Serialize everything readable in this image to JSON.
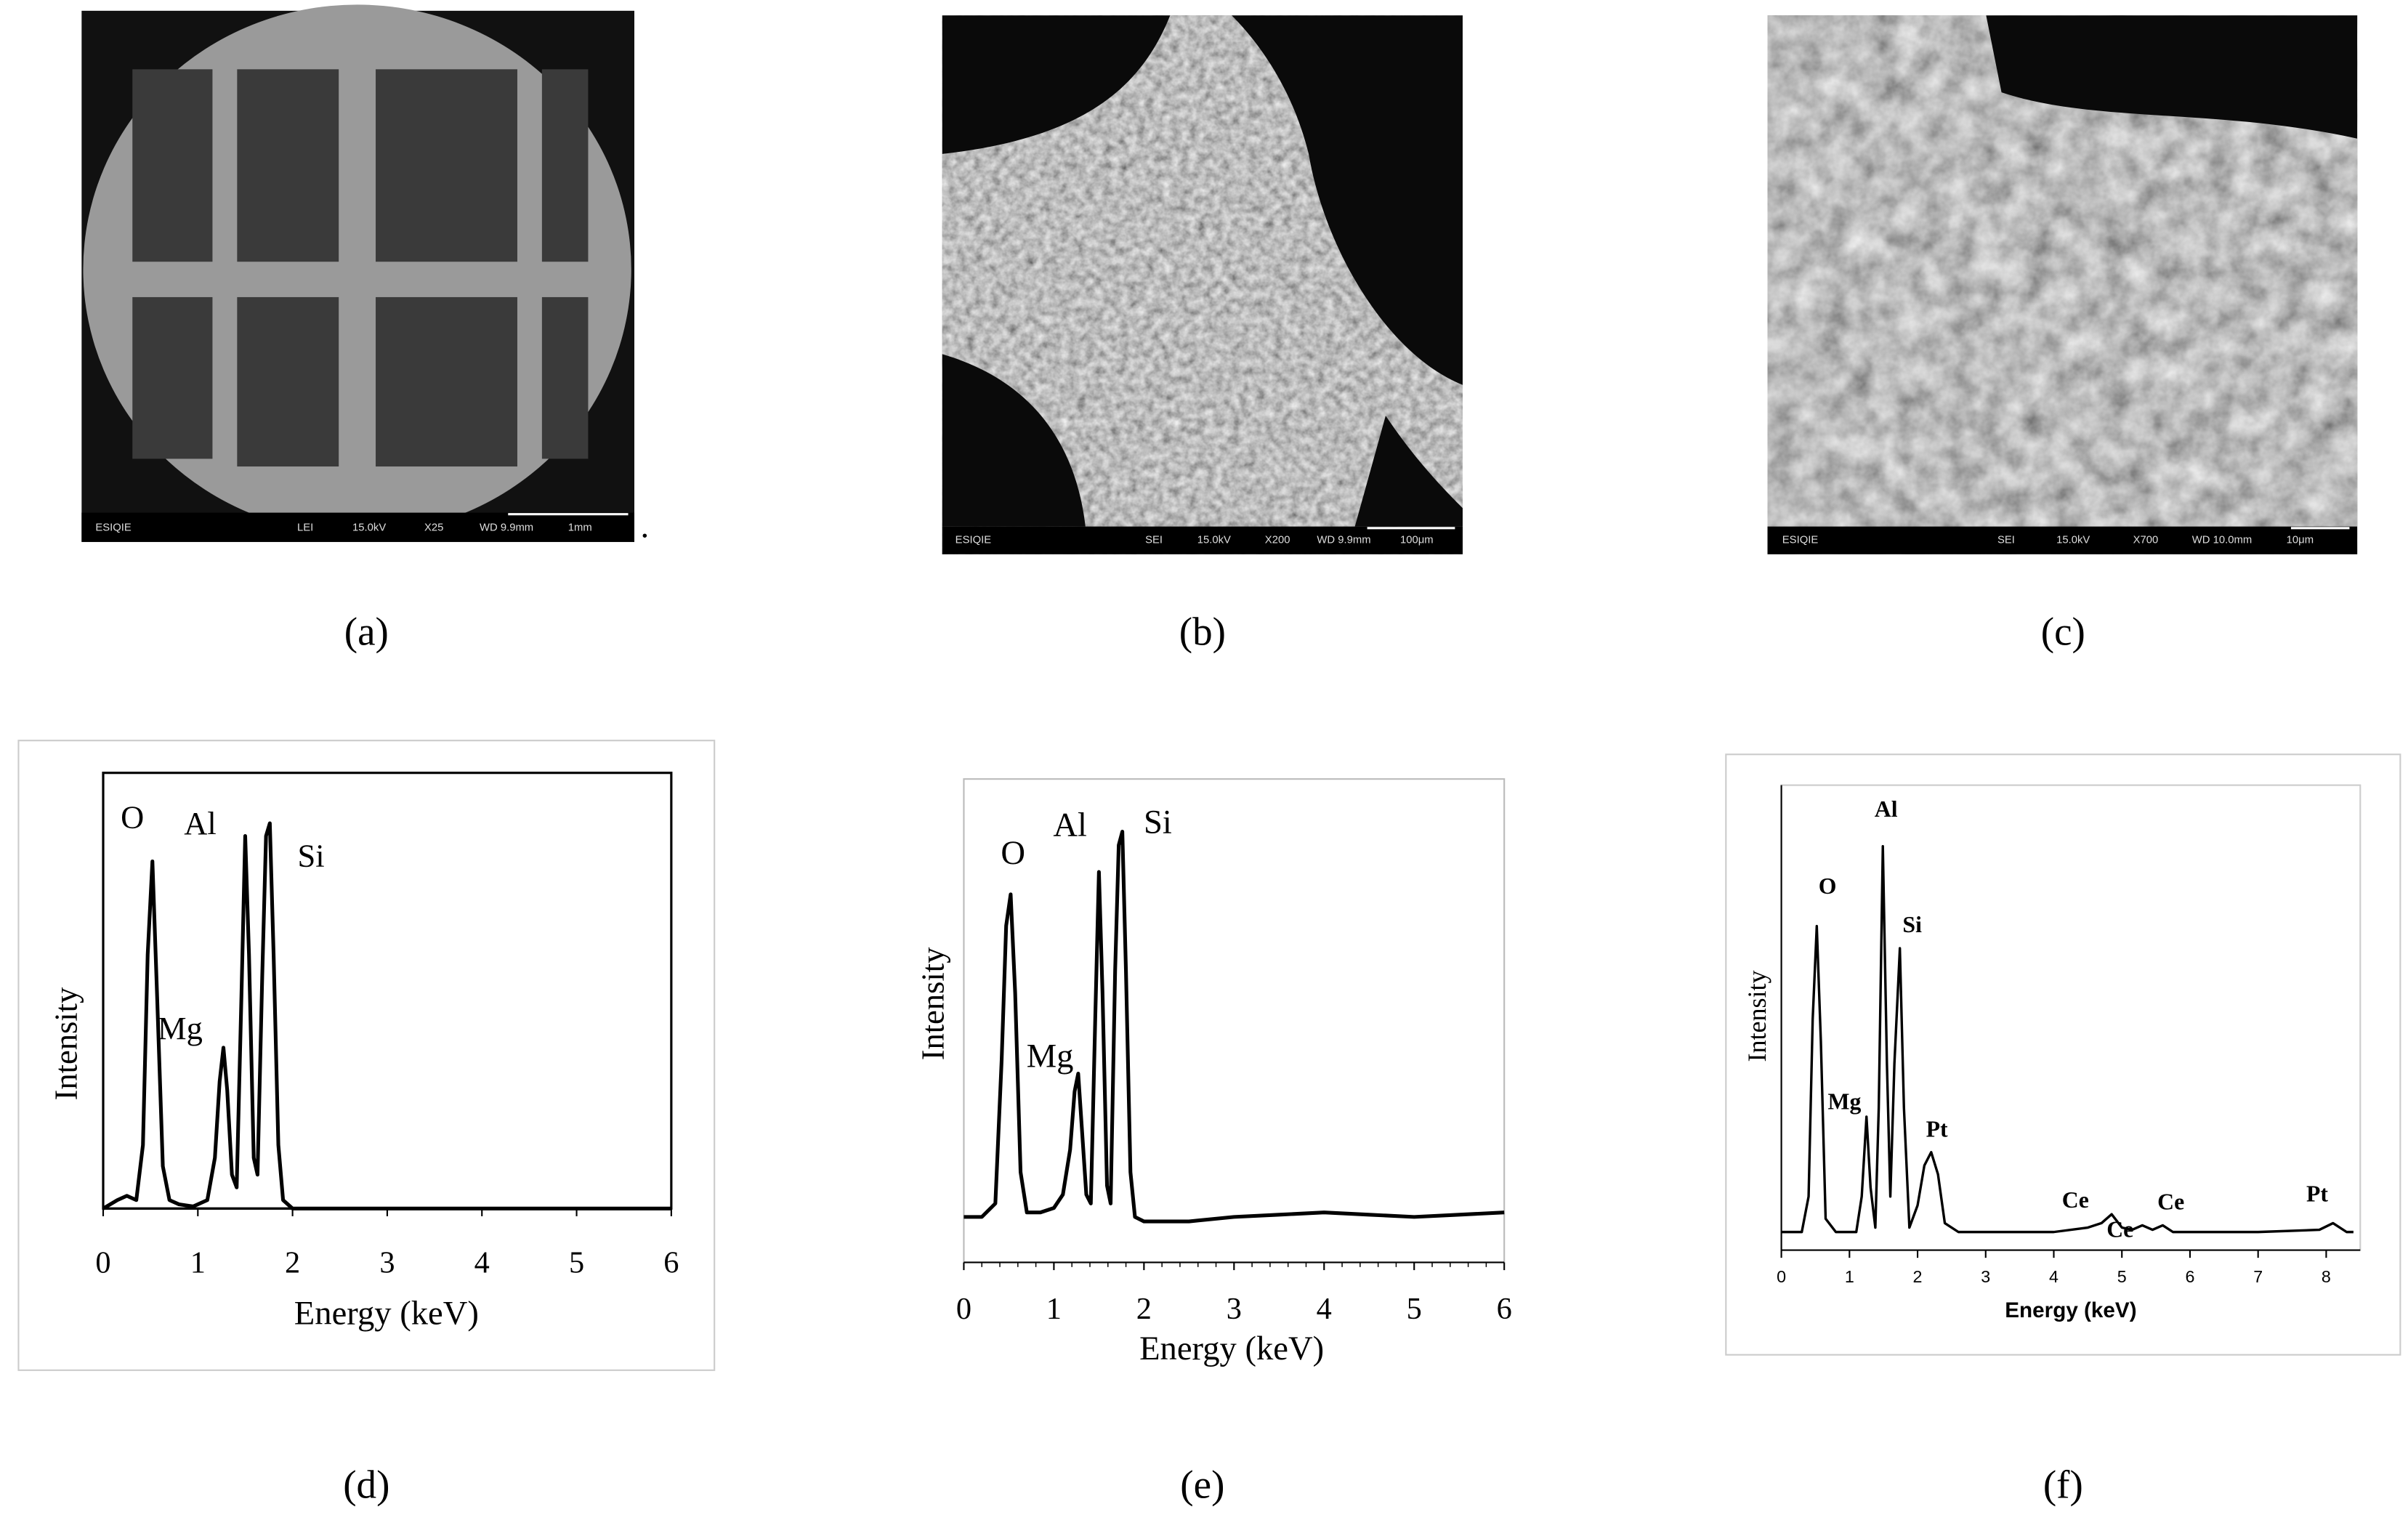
{
  "panels": {
    "labels": [
      "(a)",
      "(b)",
      "(c)",
      "(d)",
      "(e)",
      "(f)"
    ]
  },
  "images": [
    {
      "info": [
        "ESIQIE",
        "LEI",
        "15.0kV",
        "X25",
        "WD 9.9mm",
        "1mm"
      ],
      "trailing": "."
    },
    {
      "info": [
        "ESIQIE",
        "SEI",
        "15.0kV",
        "X200",
        "WD 9.9mm",
        "100μm"
      ]
    },
    {
      "info": [
        "ESIQIE",
        "SEI",
        "15.0kV",
        "X700",
        "WD 10.0mm",
        "10μm"
      ]
    }
  ],
  "chart_data": [
    {
      "type": "line",
      "x_label": "Energy (keV)",
      "y_label": "Intensity",
      "color": "#000000",
      "x": [
        0,
        0.15,
        0.25,
        0.35,
        0.42,
        0.47,
        0.52,
        0.57,
        0.63,
        0.7,
        0.8,
        0.95,
        1.1,
        1.18,
        1.23,
        1.27,
        1.31,
        1.36,
        1.41,
        1.46,
        1.5,
        1.54,
        1.59,
        1.63,
        1.68,
        1.72,
        1.76,
        1.8,
        1.85,
        1.9,
        2.0,
        3,
        4,
        5,
        6
      ],
      "values": [
        0,
        2,
        3,
        2,
        15,
        60,
        82,
        50,
        10,
        2,
        1,
        0.5,
        2,
        12,
        30,
        38,
        28,
        8,
        5,
        50,
        88,
        60,
        12,
        8,
        55,
        88,
        91,
        60,
        15,
        2,
        0,
        0,
        0,
        0,
        0
      ],
      "xlim": [
        0,
        6
      ],
      "ylim": [
        0,
        100
      ],
      "xticks": [
        0,
        1,
        2,
        3,
        4,
        5,
        6
      ],
      "annotations": [
        "O",
        "Al",
        "Si",
        "Mg"
      ]
    },
    {
      "type": "line",
      "x_label": "Energy (keV)",
      "y_label": "Intensity",
      "color": "#000000",
      "x": [
        0,
        0.2,
        0.35,
        0.42,
        0.47,
        0.52,
        0.57,
        0.63,
        0.7,
        0.85,
        1.0,
        1.1,
        1.18,
        1.23,
        1.27,
        1.31,
        1.36,
        1.41,
        1.46,
        1.5,
        1.54,
        1.59,
        1.63,
        1.68,
        1.72,
        1.76,
        1.8,
        1.85,
        1.9,
        2.0,
        2.5,
        3,
        3.5,
        4,
        4.5,
        5,
        5.5,
        6
      ],
      "values": [
        5,
        5,
        8,
        40,
        70,
        77,
        55,
        15,
        6,
        6,
        7,
        10,
        20,
        33,
        37,
        25,
        10,
        8,
        50,
        82,
        55,
        12,
        8,
        60,
        88,
        91,
        60,
        15,
        5,
        4,
        4,
        5,
        5.5,
        6,
        5.5,
        5,
        5.5,
        6
      ],
      "xlim": [
        0,
        6
      ],
      "ylim": [
        0,
        100
      ],
      "xticks": [
        0,
        1,
        2,
        3,
        4,
        5,
        6
      ],
      "annotations": [
        "O",
        "Al",
        "Si",
        "Mg"
      ]
    },
    {
      "type": "line",
      "x_label": "Energy (keV)",
      "y_label": "Intensity",
      "color": "#000000",
      "x": [
        0,
        0.3,
        0.4,
        0.46,
        0.52,
        0.58,
        0.65,
        0.8,
        1.1,
        1.18,
        1.25,
        1.31,
        1.38,
        1.43,
        1.49,
        1.55,
        1.6,
        1.66,
        1.74,
        1.8,
        1.88,
        2.0,
        2.1,
        2.2,
        2.3,
        2.4,
        2.6,
        3,
        4,
        4.5,
        4.7,
        4.85,
        5.0,
        5.15,
        5.3,
        5.45,
        5.6,
        5.75,
        6,
        7,
        7.9,
        8.1,
        8.3,
        8.4
      ],
      "values": [
        2,
        2,
        10,
        50,
        71,
        45,
        5,
        2,
        2,
        10,
        28,
        12,
        3,
        30,
        89,
        40,
        10,
        40,
        66,
        30,
        3,
        8,
        17,
        20,
        15,
        4,
        2,
        2,
        2,
        3,
        4,
        6,
        3,
        2.5,
        3.5,
        2.5,
        3.5,
        2,
        2,
        2,
        2.5,
        4,
        2,
        2
      ],
      "xlim": [
        0,
        8.5
      ],
      "ylim": [
        0,
        100
      ],
      "xticks": [
        0,
        1,
        2,
        3,
        4,
        5,
        6,
        7,
        8
      ],
      "annotations": [
        "O",
        "Al",
        "Si",
        "Mg",
        "Pt",
        "Ce",
        "Ce",
        "Ce",
        "Pt"
      ]
    }
  ]
}
